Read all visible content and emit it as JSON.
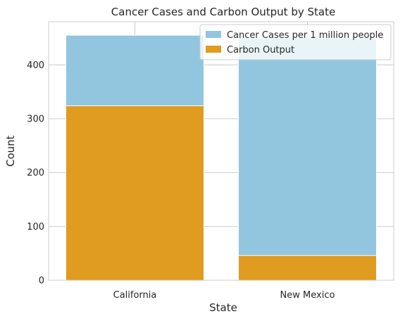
{
  "chart_data": {
    "type": "bar",
    "title": "Cancer Cases and Carbon Output by State",
    "xlabel": "State",
    "ylabel": "Count",
    "categories": [
      "California",
      "New Mexico"
    ],
    "series": [
      {
        "name": "Cancer Cases per 1 million people",
        "values": [
          455,
          450
        ],
        "color": "#92c6df"
      },
      {
        "name": "Carbon Output",
        "values": [
          324,
          46
        ],
        "color": "#e09b21"
      }
    ],
    "ylim": [
      0,
      480
    ],
    "yticks": [
      0,
      100,
      200,
      300,
      400
    ],
    "grid": true,
    "legend": "top-right",
    "overlap": true
  }
}
